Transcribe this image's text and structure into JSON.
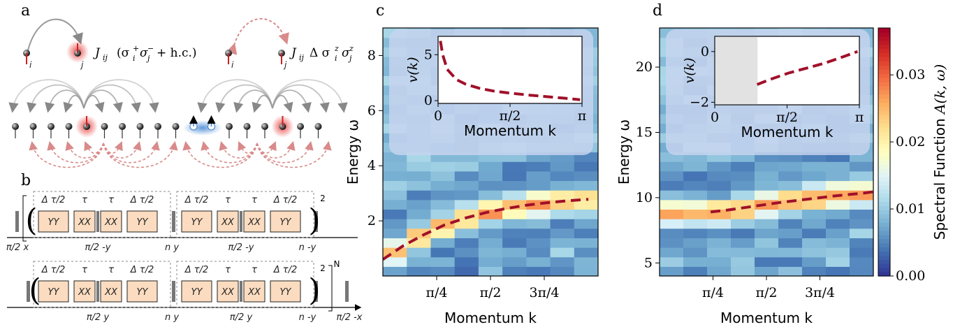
{
  "panels": {
    "a": "a",
    "b": "b",
    "c": "c",
    "d": "d"
  },
  "panel_a": {
    "site_i": "i",
    "site_j": "j",
    "hop_term": "J_ij (σ_i^+ σ_j^- + h.c.)",
    "hop_J": "J",
    "hop_sub": "ij",
    "hop_body": "(σ",
    "hop_hc": "+ h.c.)",
    "zz_term": "J_ij Δ σ_i^z σ_j^z",
    "zz_J": "J",
    "zz_sub": "ij",
    "zz_delta": "Δ σ",
    "colors": {
      "red": "#e83a3a",
      "blue": "#3a7fd0",
      "arrow_gray": "#888888",
      "arrow_red": "#d98a8a"
    }
  },
  "panel_b": {
    "row1": {
      "blocks": [
        "YY",
        "XX",
        "XX",
        "YY",
        "YY",
        "XX",
        "XX",
        "YY"
      ],
      "top_labels": [
        "Δ τ/2",
        "τ",
        "τ",
        "Δ τ/2",
        "Δ τ/2",
        "τ",
        "τ",
        "Δ τ/2"
      ],
      "bottom_labels": [
        "π/2 x",
        "π/2 -y",
        "n y",
        "π/2 -y",
        "n -y"
      ],
      "power": "2"
    },
    "row2": {
      "blocks": [
        "YY",
        "XX",
        "XX",
        "YY",
        "YY",
        "XX",
        "XX",
        "YY"
      ],
      "top_labels": [
        "Δ τ/2",
        "τ",
        "τ",
        "Δ τ/2",
        "Δ τ/2",
        "τ",
        "τ",
        "Δ τ/2"
      ],
      "bottom_labels": [
        "π/2 y",
        "n y",
        "π/2 y",
        "n -y",
        "π/2 -x"
      ],
      "power": "2",
      "outer_power": "N"
    },
    "block_color": "#fbdcc0"
  },
  "chart_data": [
    {
      "type": "heatmap",
      "panel": "c",
      "xlabel": "Momentum k",
      "ylabel": "Energy ω",
      "xticks": [
        "π/4",
        "π/2",
        "3π/4"
      ],
      "yticks": [
        "2",
        "4",
        "6",
        "8"
      ],
      "ylim": [
        0,
        9
      ],
      "xlim": [
        0.0,
        3.1416
      ],
      "ridge": {
        "name": "",
        "x": [
          0.0,
          0.3,
          0.6,
          0.9,
          1.2,
          1.5,
          1.8,
          2.1,
          2.4,
          2.7,
          3.0
        ],
        "y": [
          0.6,
          1.1,
          1.5,
          1.85,
          2.1,
          2.3,
          2.45,
          2.57,
          2.66,
          2.73,
          2.78
        ]
      },
      "inset": {
        "type": "line",
        "xlabel": "Momentum k",
        "ylabel": "v(k)",
        "xticks": [
          "0",
          "π/2",
          "π"
        ],
        "yticks": [
          "0",
          "5"
        ],
        "ylim": [
          -0.3,
          7
        ],
        "x": [
          0.05,
          0.1,
          0.2,
          0.4,
          0.6,
          0.9,
          1.2,
          1.6,
          2.0,
          2.4,
          2.8,
          3.1
        ],
        "y": [
          6.5,
          5.0,
          3.4,
          2.3,
          1.8,
          1.35,
          1.05,
          0.8,
          0.6,
          0.42,
          0.25,
          0.1
        ]
      }
    },
    {
      "type": "heatmap",
      "panel": "d",
      "xlabel": "Momentum k",
      "ylabel": "Energy ω",
      "xticks": [
        "π/4",
        "π/2",
        "3π/4"
      ],
      "yticks": [
        "5",
        "10",
        "15",
        "20"
      ],
      "ylim": [
        4,
        23
      ],
      "xlim": [
        0.0,
        3.1416
      ],
      "ridge": {
        "name": "",
        "x": [
          0.75,
          1.0,
          1.4,
          1.8,
          2.2,
          2.6,
          3.0,
          3.14
        ],
        "y": [
          8.9,
          9.05,
          9.35,
          9.65,
          9.9,
          10.15,
          10.35,
          10.45
        ]
      },
      "inset": {
        "type": "line",
        "xlabel": "Momentum k",
        "ylabel": "v(k)",
        "xticks": [
          "0",
          "π/2",
          "π"
        ],
        "yticks": [
          "−2",
          "0"
        ],
        "ylim": [
          -2.1,
          0.6
        ],
        "shaded_until": 0.92,
        "x": [
          0.92,
          1.2,
          1.6,
          2.0,
          2.4,
          2.8,
          3.1
        ],
        "y": [
          -1.3,
          -1.1,
          -0.85,
          -0.65,
          -0.45,
          -0.2,
          0.0
        ]
      },
      "colorbar": {
        "label": "Spectral Function A(k, ω)",
        "label_text": "Spectral Function",
        "label_math": "A(k, ω)",
        "ticks": [
          "0.00",
          "0.01",
          "0.02",
          "0.03"
        ],
        "range": [
          0,
          0.037
        ],
        "colors": [
          "#313695",
          "#4575b4",
          "#74add1",
          "#abd9e9",
          "#e0f3f8",
          "#ffffbf",
          "#fee090",
          "#fdae61",
          "#f46d43",
          "#d73027",
          "#a50026"
        ]
      }
    }
  ]
}
